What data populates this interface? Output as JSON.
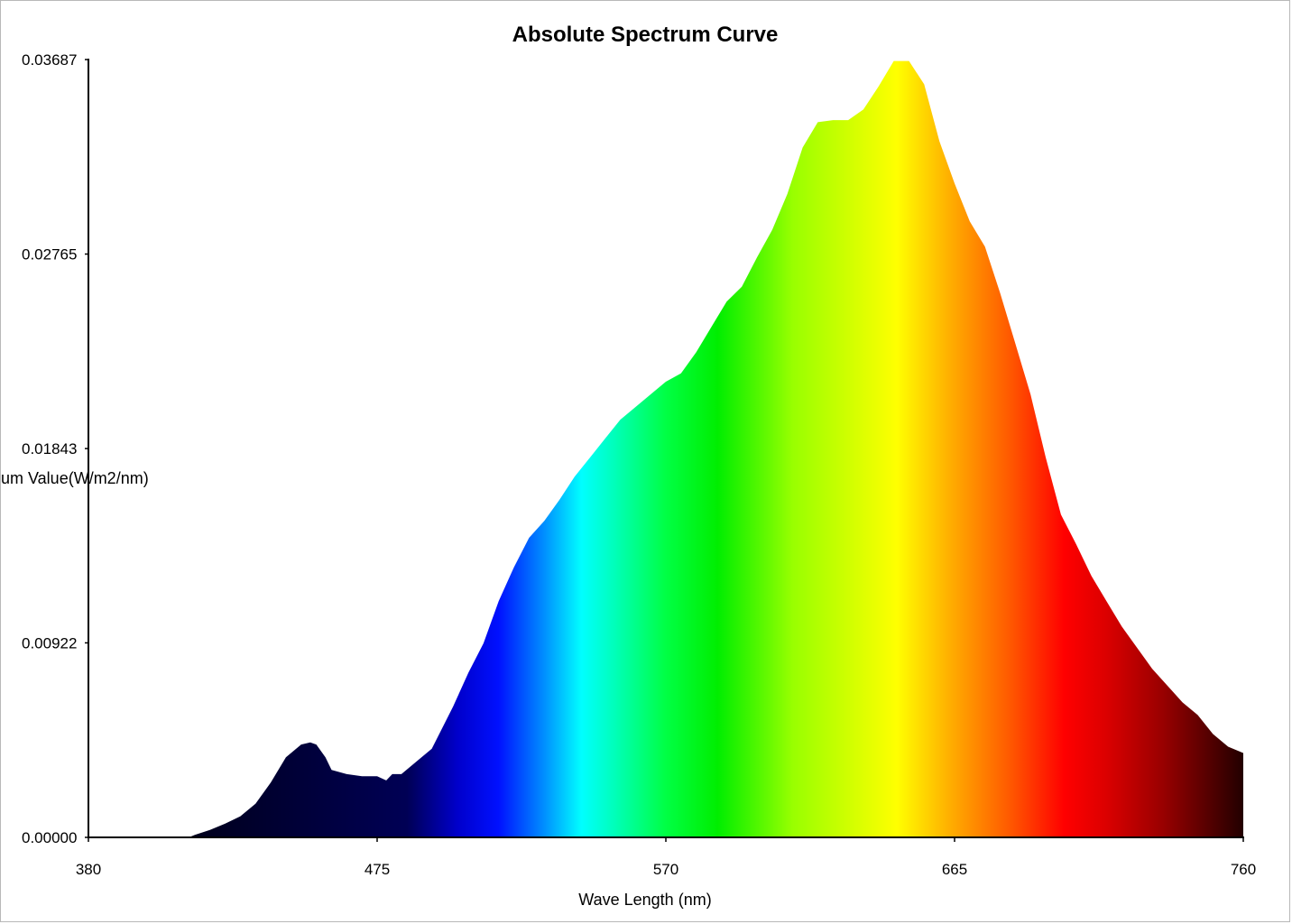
{
  "window": {
    "title": "Absolute Spectrum Curve"
  },
  "chart_data": {
    "type": "area",
    "title": "Absolute Spectrum Curve",
    "xlabel": "Wave Length (nm)",
    "ylabel": "um Value(W/m2/nm)",
    "xlim": [
      380,
      760
    ],
    "ylim": [
      0.0,
      0.03687
    ],
    "x_ticks": [
      "380",
      "475",
      "570",
      "665",
      "760"
    ],
    "y_ticks": [
      "0.00000",
      "0.00922",
      "0.01843",
      "0.02765",
      "0.03687"
    ],
    "fill": "visible spectrum gradient (violet to dark red)",
    "grid": false,
    "legend": "none",
    "series": [
      {
        "x": [
          380,
          413,
          415,
          420,
          425,
          430,
          435,
          440,
          445,
          450,
          453,
          455,
          458,
          460,
          465,
          470,
          475,
          478,
          480,
          483,
          488,
          493,
          500,
          505,
          510,
          515,
          520,
          525,
          530,
          535,
          540,
          545,
          550,
          555,
          560,
          565,
          570,
          575,
          580,
          585,
          590,
          595,
          600,
          605,
          610,
          615,
          620,
          625,
          630,
          635,
          640,
          645,
          650,
          655,
          660,
          665,
          670,
          675,
          680,
          685,
          690,
          695,
          700,
          705,
          710,
          715,
          720,
          725,
          730,
          735,
          740,
          745,
          750,
          755,
          760
        ],
        "values": [
          0.0,
          0.0,
          0.00012,
          0.00035,
          0.00065,
          0.001,
          0.0016,
          0.0026,
          0.0038,
          0.0044,
          0.0045,
          0.0044,
          0.0038,
          0.0032,
          0.003,
          0.0029,
          0.0029,
          0.0027,
          0.003,
          0.003,
          0.0036,
          0.0042,
          0.0062,
          0.0078,
          0.0092,
          0.0112,
          0.0128,
          0.0142,
          0.015,
          0.016,
          0.0171,
          0.018,
          0.0189,
          0.0198,
          0.0204,
          0.021,
          0.0216,
          0.022,
          0.023,
          0.0242,
          0.0254,
          0.0261,
          0.0275,
          0.0288,
          0.0305,
          0.0327,
          0.0339,
          0.034,
          0.034,
          0.0345,
          0.0356,
          0.0368,
          0.0368,
          0.0357,
          0.033,
          0.031,
          0.0292,
          0.028,
          0.0258,
          0.0234,
          0.021,
          0.018,
          0.0153,
          0.0139,
          0.0124,
          0.0112,
          0.01,
          0.009,
          0.008,
          0.0072,
          0.0064,
          0.0058,
          0.0049,
          0.0043,
          0.004
        ]
      }
    ]
  }
}
